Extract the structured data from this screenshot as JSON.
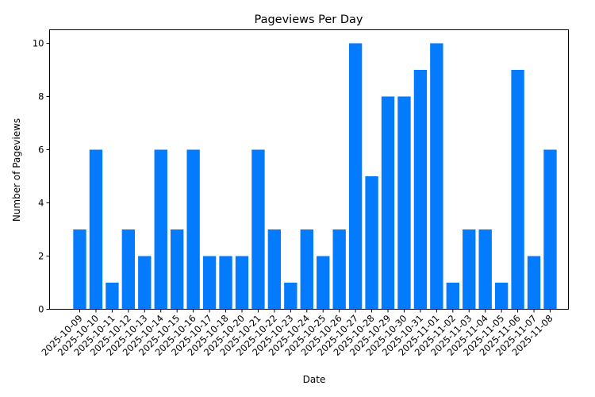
{
  "chart_data": {
    "type": "bar",
    "title": "Pageviews Per Day",
    "xlabel": "Date",
    "ylabel": "Number of Pageviews",
    "ylim": [
      0,
      10.5
    ],
    "yticks": [
      0,
      2,
      4,
      6,
      8,
      10
    ],
    "grid": false,
    "legend": null,
    "bar_color": "#037bfc",
    "categories": [
      "2025-10-09",
      "2025-10-10",
      "2025-10-11",
      "2025-10-12",
      "2025-10-13",
      "2025-10-14",
      "2025-10-15",
      "2025-10-16",
      "2025-10-17",
      "2025-10-18",
      "2025-10-20",
      "2025-10-21",
      "2025-10-22",
      "2025-10-23",
      "2025-10-24",
      "2025-10-25",
      "2025-10-26",
      "2025-10-27",
      "2025-10-28",
      "2025-10-29",
      "2025-10-30",
      "2025-10-31",
      "2025-11-01",
      "2025-11-02",
      "2025-11-03",
      "2025-11-04",
      "2025-11-05",
      "2025-11-06",
      "2025-11-07",
      "2025-11-08"
    ],
    "values": [
      3,
      6,
      1,
      3,
      2,
      6,
      3,
      6,
      2,
      2,
      2,
      6,
      3,
      1,
      3,
      2,
      3,
      10,
      5,
      8,
      8,
      9,
      10,
      1,
      3,
      3,
      1,
      9,
      2,
      6
    ]
  }
}
